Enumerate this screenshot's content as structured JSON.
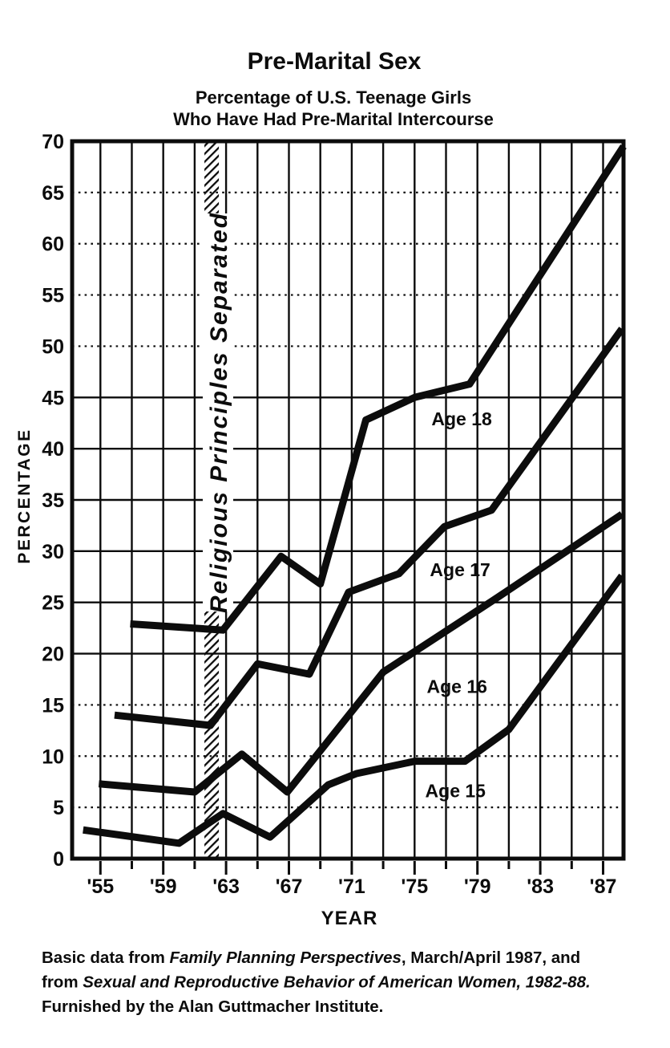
{
  "title": "Pre-Marital Sex",
  "subtitle_line1": "Percentage of U.S. Teenage Girls",
  "subtitle_line2": "Who Have Had Pre-Marital Intercourse",
  "chart_data": {
    "type": "line",
    "title": "Pre-Marital Sex",
    "subtitle": "Percentage of U.S. Teenage Girls Who Have Had Pre-Marital Intercourse",
    "xlabel": "YEAR",
    "ylabel": "PERCENTAGE",
    "xlim": [
      1953.2,
      1988.3
    ],
    "ylim": [
      0,
      70
    ],
    "grid": true,
    "x_gridline_step_years": 2,
    "x_ticks": [
      {
        "year": 1955,
        "label": "'55"
      },
      {
        "year": 1959,
        "label": "'59"
      },
      {
        "year": 1963,
        "label": "'63"
      },
      {
        "year": 1967,
        "label": "'67"
      },
      {
        "year": 1971,
        "label": "'71"
      },
      {
        "year": 1975,
        "label": "'75"
      },
      {
        "year": 1979,
        "label": "'79"
      },
      {
        "year": 1983,
        "label": "'83"
      },
      {
        "year": 1987,
        "label": "'87"
      }
    ],
    "y_ticks": [
      {
        "value": 0,
        "label": "0"
      },
      {
        "value": 5,
        "label": "5"
      },
      {
        "value": 10,
        "label": "10"
      },
      {
        "value": 15,
        "label": "15"
      },
      {
        "value": 20,
        "label": "20"
      },
      {
        "value": 25,
        "label": "25"
      },
      {
        "value": 30,
        "label": "30"
      },
      {
        "value": 35,
        "label": "35"
      },
      {
        "value": 40,
        "label": "40"
      },
      {
        "value": 45,
        "label": "45"
      },
      {
        "value": 50,
        "label": "50"
      },
      {
        "value": 55,
        "label": "55"
      },
      {
        "value": 60,
        "label": "60"
      },
      {
        "value": 65,
        "label": "65"
      },
      {
        "value": 70,
        "label": "70"
      }
    ],
    "dotted_y_gridlines": [
      5,
      10,
      15,
      50,
      55,
      60,
      65
    ],
    "solid_y_gridlines": [
      20,
      25,
      30,
      35,
      40,
      45
    ],
    "annotation_band": {
      "label": "Religious Principles Separated",
      "x_start": 1961.62,
      "x_end": 1962.54
    },
    "series": [
      {
        "name": "Age 18",
        "label_pos": {
          "x": 1978.0,
          "y": 42.9
        },
        "points": [
          [
            1956.9,
            22.9
          ],
          [
            1962.8,
            22.3
          ],
          [
            1966.5,
            29.5
          ],
          [
            1969,
            26.8
          ],
          [
            1971.9,
            42.8
          ],
          [
            1975,
            45
          ],
          [
            1978.5,
            46.3
          ],
          [
            1988.3,
            69.5
          ]
        ]
      },
      {
        "name": "Age 17",
        "label_pos": {
          "x": 1977.9,
          "y": 28.2
        },
        "points": [
          [
            1955.9,
            14
          ],
          [
            1962,
            13
          ],
          [
            1965,
            19
          ],
          [
            1968.3,
            18
          ],
          [
            1970.8,
            26
          ],
          [
            1974,
            27.8
          ],
          [
            1976.9,
            32.4
          ],
          [
            1979.9,
            34
          ],
          [
            1988.2,
            51.7
          ]
        ]
      },
      {
        "name": "Age 16",
        "label_pos": {
          "x": 1977.7,
          "y": 16.8
        },
        "points": [
          [
            1954.9,
            7.3
          ],
          [
            1961,
            6.5
          ],
          [
            1964,
            10.2
          ],
          [
            1966.9,
            6.5
          ],
          [
            1973,
            18.2
          ],
          [
            1980,
            25.2
          ],
          [
            1988.2,
            33.6
          ]
        ]
      },
      {
        "name": "Age 15",
        "label_pos": {
          "x": 1977.6,
          "y": 6.6
        },
        "points": [
          [
            1953.9,
            2.8
          ],
          [
            1960,
            1.5
          ],
          [
            1962.8,
            4.4
          ],
          [
            1965.8,
            2.1
          ],
          [
            1969.5,
            7.2
          ],
          [
            1971.3,
            8.3
          ],
          [
            1975,
            9.5
          ],
          [
            1978.2,
            9.5
          ],
          [
            1981,
            12.6
          ],
          [
            1988.2,
            27.6
          ]
        ]
      }
    ]
  },
  "y_axis": {
    "title": "PERCENTAGE"
  },
  "x_axis": {
    "title": "YEAR"
  },
  "caption": {
    "lines": [
      [
        {
          "text": "Basic data from ",
          "italic": false
        },
        {
          "text": "Family Planning Perspectives",
          "italic": true
        },
        {
          "text": ", March/April 1987, and",
          "italic": false
        }
      ],
      [
        {
          "text": "from ",
          "italic": false
        },
        {
          "text": "Sexual and Reproductive Behavior of American Women, 1982-88.",
          "italic": true
        }
      ],
      [
        {
          "text": "Furnished by the Alan Guttmacher Institute.",
          "italic": false
        }
      ]
    ]
  },
  "colors": {
    "ink": "#0c0c0c"
  }
}
